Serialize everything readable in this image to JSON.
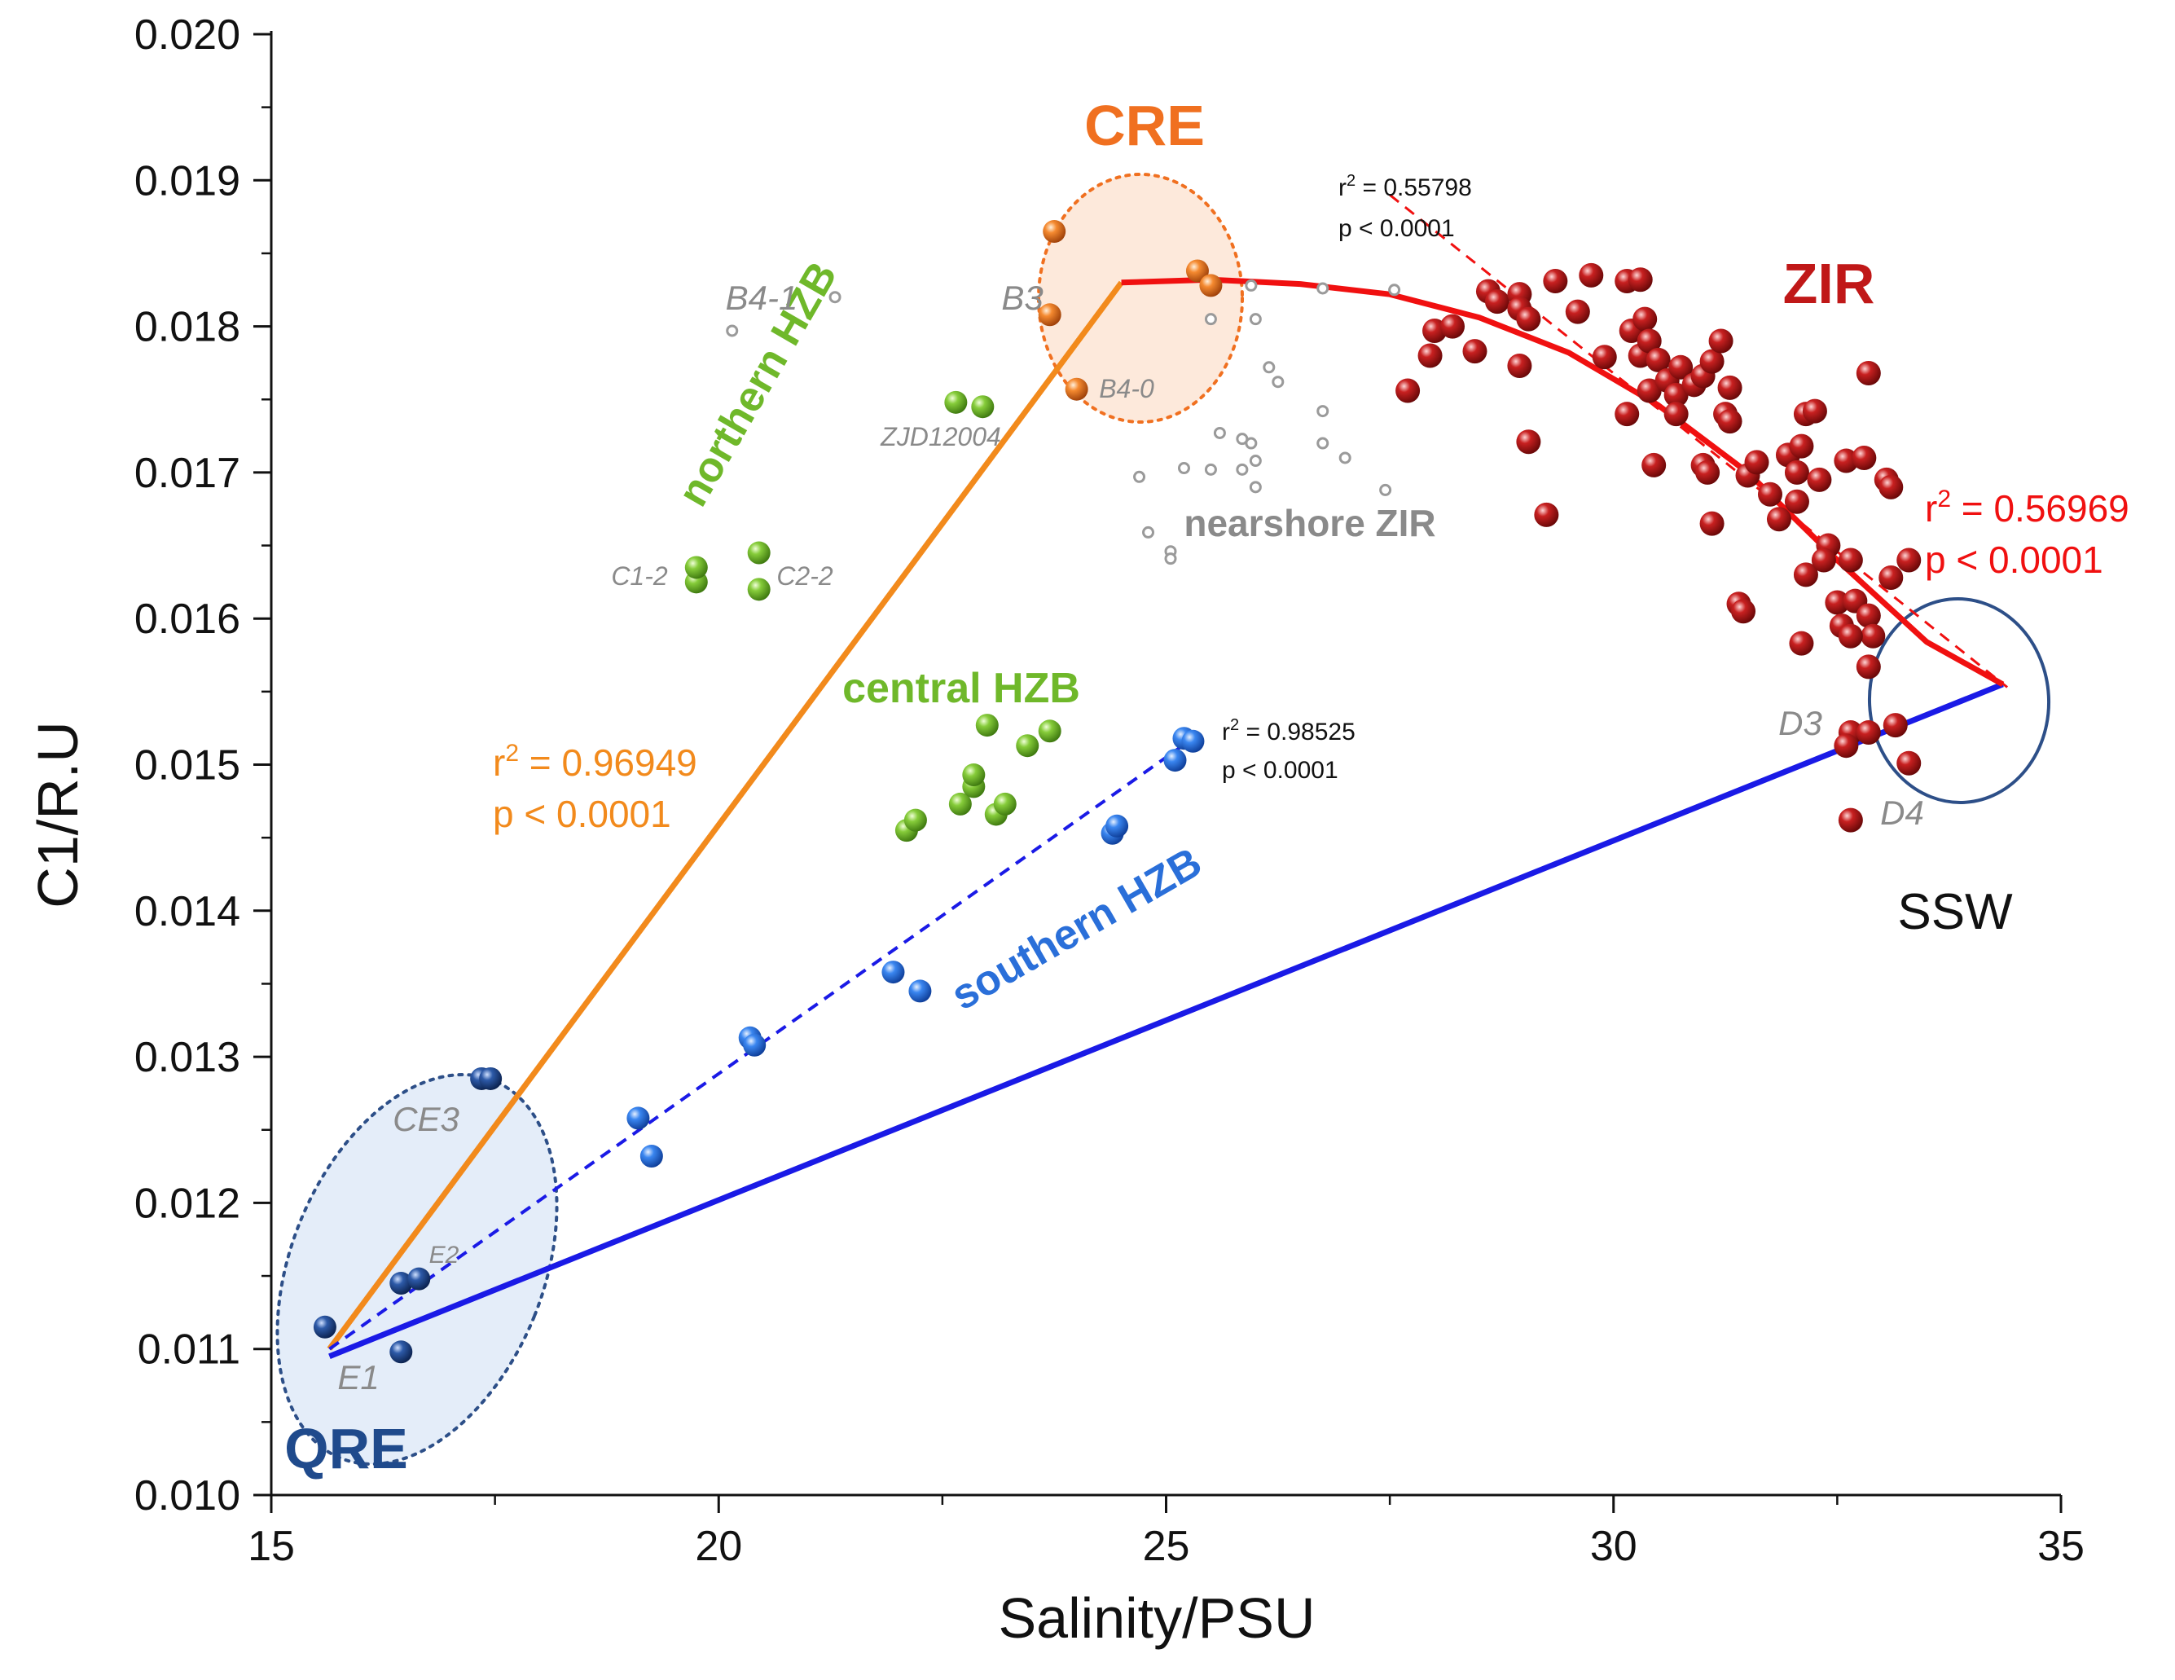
{
  "chart_data": {
    "type": "scatter",
    "title": "",
    "xlabel": "Salinity/PSU",
    "ylabel": "C1/R.U",
    "xlim": [
      15,
      35
    ],
    "ylim": [
      0.01,
      0.02
    ],
    "xticks": [
      "15",
      "20",
      "25",
      "30",
      "35"
    ],
    "yticks": [
      "0.010",
      "0.011",
      "0.012",
      "0.013",
      "0.014",
      "0.015",
      "0.016",
      "0.017",
      "0.018",
      "0.019",
      "0.020"
    ],
    "series": [
      {
        "name": "QRE",
        "color": "#1f3d7a",
        "points": [
          [
            15.6,
            0.01115
          ],
          [
            16.45,
            0.01145
          ],
          [
            16.65,
            0.01148
          ],
          [
            16.45,
            0.01098
          ],
          [
            17.35,
            0.01285
          ],
          [
            17.45,
            0.01285
          ]
        ]
      },
      {
        "name": "southern HZB",
        "color": "#2a6fd9",
        "points": [
          [
            19.1,
            0.01258
          ],
          [
            19.25,
            0.01232
          ],
          [
            20.35,
            0.01313
          ],
          [
            20.4,
            0.01308
          ],
          [
            21.95,
            0.01358
          ],
          [
            22.25,
            0.01345
          ],
          [
            24.4,
            0.01453
          ],
          [
            24.45,
            0.01458
          ],
          [
            25.1,
            0.01503
          ],
          [
            25.2,
            0.01518
          ],
          [
            25.3,
            0.01516
          ]
        ]
      },
      {
        "name": "central HZB",
        "color": "#6fb82a",
        "points": [
          [
            22.1,
            0.01455
          ],
          [
            22.2,
            0.01462
          ],
          [
            22.7,
            0.01473
          ],
          [
            22.85,
            0.01485
          ],
          [
            22.85,
            0.01493
          ],
          [
            23.1,
            0.01466
          ],
          [
            23.2,
            0.01473
          ],
          [
            23.0,
            0.01527
          ],
          [
            23.45,
            0.01513
          ],
          [
            23.7,
            0.01523
          ]
        ]
      },
      {
        "name": "northern HZB",
        "color": "#6fb82a",
        "points": [
          [
            19.75,
            0.01625
          ],
          [
            19.75,
            0.01635
          ],
          [
            20.45,
            0.0162
          ],
          [
            20.45,
            0.01645
          ],
          [
            22.65,
            0.01748
          ],
          [
            22.95,
            0.01745
          ]
        ]
      },
      {
        "name": "CRE",
        "color": "#f07020",
        "points": [
          [
            23.75,
            0.01865
          ],
          [
            23.7,
            0.01808
          ],
          [
            24.0,
            0.01757
          ],
          [
            25.35,
            0.01838
          ],
          [
            25.5,
            0.01828
          ]
        ]
      },
      {
        "name": "nearshore ZIR",
        "color": "#9a9a9a",
        "points": [
          [
            21.3,
            0.0182
          ],
          [
            20.15,
            0.01797
          ],
          [
            25.5,
            0.01805
          ],
          [
            25.95,
            0.01828
          ],
          [
            26.0,
            0.01805
          ],
          [
            26.15,
            0.01772
          ],
          [
            26.25,
            0.01762
          ],
          [
            25.6,
            0.01727
          ],
          [
            25.85,
            0.01723
          ],
          [
            25.95,
            0.0172
          ],
          [
            26.0,
            0.01708
          ],
          [
            25.5,
            0.01702
          ],
          [
            25.2,
            0.01703
          ],
          [
            25.85,
            0.01702
          ],
          [
            26.0,
            0.0169
          ],
          [
            24.7,
            0.01697
          ],
          [
            24.8,
            0.01659
          ],
          [
            25.05,
            0.01646
          ],
          [
            25.05,
            0.01641
          ],
          [
            26.75,
            0.01742
          ],
          [
            26.75,
            0.0172
          ],
          [
            27.0,
            0.0171
          ],
          [
            27.45,
            0.01688
          ],
          [
            26.75,
            0.01826
          ],
          [
            27.55,
            0.01825
          ]
        ]
      },
      {
        "name": "ZIR",
        "color": "#c01818",
        "points": [
          [
            27.7,
            0.01756
          ],
          [
            27.95,
            0.0178
          ],
          [
            28.0,
            0.01797
          ],
          [
            28.2,
            0.018
          ],
          [
            28.45,
            0.01783
          ],
          [
            28.6,
            0.01824
          ],
          [
            28.7,
            0.01817
          ],
          [
            28.95,
            0.01822
          ],
          [
            28.95,
            0.01812
          ],
          [
            29.05,
            0.01805
          ],
          [
            28.95,
            0.01773
          ],
          [
            29.05,
            0.01721
          ],
          [
            29.25,
            0.01671
          ],
          [
            29.35,
            0.01831
          ],
          [
            29.6,
            0.0181
          ],
          [
            29.75,
            0.01835
          ],
          [
            29.9,
            0.01779
          ],
          [
            30.15,
            0.01831
          ],
          [
            30.2,
            0.01797
          ],
          [
            30.3,
            0.01832
          ],
          [
            30.35,
            0.01805
          ],
          [
            30.15,
            0.0174
          ],
          [
            30.3,
            0.0178
          ],
          [
            30.4,
            0.0179
          ],
          [
            30.4,
            0.01756
          ],
          [
            30.5,
            0.01777
          ],
          [
            30.6,
            0.01763
          ],
          [
            30.7,
            0.01753
          ],
          [
            30.75,
            0.01772
          ],
          [
            30.9,
            0.0176
          ],
          [
            31.0,
            0.01766
          ],
          [
            31.1,
            0.01776
          ],
          [
            31.2,
            0.0179
          ],
          [
            31.3,
            0.01758
          ],
          [
            31.25,
            0.0174
          ],
          [
            31.3,
            0.01735
          ],
          [
            30.7,
            0.0174
          ],
          [
            30.45,
            0.01705
          ],
          [
            31.0,
            0.01705
          ],
          [
            31.05,
            0.017
          ],
          [
            31.1,
            0.01665
          ],
          [
            31.5,
            0.01698
          ],
          [
            31.6,
            0.01707
          ],
          [
            31.75,
            0.01685
          ],
          [
            31.85,
            0.01668
          ],
          [
            31.95,
            0.01712
          ],
          [
            32.05,
            0.017
          ],
          [
            32.1,
            0.01718
          ],
          [
            32.15,
            0.0174
          ],
          [
            32.25,
            0.01742
          ],
          [
            32.3,
            0.01695
          ],
          [
            32.05,
            0.0168
          ],
          [
            32.4,
            0.0165
          ],
          [
            32.6,
            0.01708
          ],
          [
            32.65,
            0.0164
          ],
          [
            32.85,
            0.01768
          ],
          [
            32.8,
            0.0171
          ],
          [
            33.05,
            0.01695
          ],
          [
            33.1,
            0.0169
          ],
          [
            33.3,
            0.0164
          ],
          [
            33.1,
            0.01628
          ],
          [
            32.15,
            0.0163
          ],
          [
            32.35,
            0.0164
          ],
          [
            31.4,
            0.0161
          ],
          [
            31.45,
            0.01605
          ],
          [
            32.5,
            0.01611
          ],
          [
            32.7,
            0.01612
          ],
          [
            32.85,
            0.01602
          ],
          [
            32.55,
            0.01595
          ],
          [
            32.9,
            0.01588
          ],
          [
            32.65,
            0.01588
          ],
          [
            32.1,
            0.01583
          ],
          [
            32.85,
            0.01567
          ],
          [
            32.65,
            0.01522
          ],
          [
            32.85,
            0.01522
          ],
          [
            33.15,
            0.01527
          ],
          [
            32.6,
            0.01513
          ],
          [
            33.3,
            0.01501
          ],
          [
            32.65,
            0.01462
          ]
        ]
      }
    ],
    "lines": [
      {
        "name": "CRE mixing line",
        "color": "#f28a1c",
        "style": "solid",
        "points": [
          [
            15.65,
            0.011
          ],
          [
            24.5,
            0.0183
          ]
        ]
      },
      {
        "name": "SSW mixing line",
        "color": "#1a1ae6",
        "style": "solid",
        "points": [
          [
            15.65,
            0.01095
          ],
          [
            34.35,
            0.01555
          ]
        ]
      },
      {
        "name": "southern HZB fit",
        "color": "#1a1ae6",
        "style": "dashed",
        "points": [
          [
            15.65,
            0.011
          ],
          [
            25.3,
            0.01518
          ]
        ]
      },
      {
        "name": "ZIR fit curve",
        "color": "#f01010",
        "style": "solid",
        "points": [
          [
            24.5,
            0.0183
          ],
          [
            25.5,
            0.01832
          ],
          [
            26.5,
            0.01829
          ],
          [
            27.5,
            0.01822
          ],
          [
            28.5,
            0.01806
          ],
          [
            29.5,
            0.01782
          ],
          [
            30.5,
            0.01746
          ],
          [
            31.5,
            0.017
          ],
          [
            32.5,
            0.0164
          ],
          [
            33.5,
            0.01584
          ],
          [
            34.35,
            0.01555
          ]
        ]
      },
      {
        "name": "ZIR linear fit",
        "color": "#f01010",
        "style": "dashed",
        "points": [
          [
            27.5,
            0.0189
          ],
          [
            34.4,
            0.01553
          ]
        ]
      }
    ],
    "annotations": {
      "group_labels": [
        {
          "name": "CRE",
          "text": "CRE",
          "color": "#f07020"
        },
        {
          "name": "ZIR",
          "text": "ZIR",
          "color": "#c01818"
        },
        {
          "name": "QRE",
          "text": "QRE",
          "color": "#1f4a8c"
        },
        {
          "name": "SSW",
          "text": "SSW",
          "color": "#111111"
        },
        {
          "name": "northern-HZB",
          "text": "northern HZB",
          "color": "#6fb82a"
        },
        {
          "name": "central-HZB",
          "text": "central HZB",
          "color": "#6fb82a"
        },
        {
          "name": "southern-HZB",
          "text": "southern HZB",
          "color": "#2a6fd9"
        },
        {
          "name": "nearshore-ZIR",
          "text": "nearshore ZIR",
          "color": "#8a8a8a"
        }
      ],
      "point_labels": [
        "B4-1",
        "B3",
        "B4-0",
        "ZJD12004",
        "C1-2",
        "C2-2",
        "CE3",
        "E2",
        "E1",
        "D3",
        "D4"
      ],
      "stats": [
        {
          "name": "cre",
          "r2": "0.96949",
          "p": "p < 0.0001",
          "color": "#f28a1c"
        },
        {
          "name": "zir-large",
          "r2": "0.56969",
          "p": "p < 0.0001",
          "color": "#f01010"
        },
        {
          "name": "zir-small",
          "r2": "0.55798",
          "p": "p < 0.0001",
          "color": "#111111"
        },
        {
          "name": "hzb-south",
          "r2": "0.98525",
          "p": "p < 0.0001",
          "color": "#111111"
        }
      ]
    }
  }
}
